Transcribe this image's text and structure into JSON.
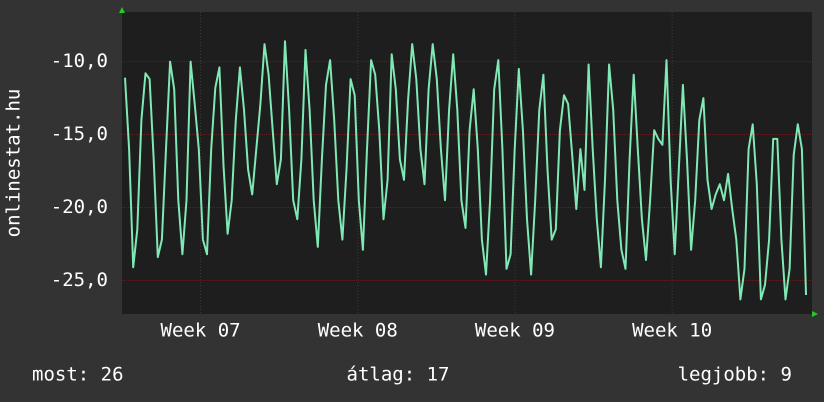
{
  "chart_data": {
    "type": "line",
    "ylabel": "onlinestat.hu",
    "ylim": [
      -27.3,
      -6.6
    ],
    "yticks": [
      {
        "value": -10,
        "label": "-10,0"
      },
      {
        "value": -15,
        "label": "-15,0"
      },
      {
        "value": -20,
        "label": "-20,0"
      },
      {
        "value": -25,
        "label": "-25,0"
      }
    ],
    "xlim": [
      6.5,
      10.89
    ],
    "xticks": [
      {
        "value": 7,
        "label": "Week 07"
      },
      {
        "value": 8,
        "label": "Week 08"
      },
      {
        "value": 9,
        "label": "Week 09"
      },
      {
        "value": 10,
        "label": "Week 10"
      }
    ],
    "grid": true,
    "series": [
      {
        "color": "#7fe8b4",
        "values": [
          -11.1,
          -16.0,
          -24.1,
          -21.5,
          -14.0,
          -10.8,
          -11.2,
          -16.7,
          -23.4,
          -22.2,
          -16.0,
          -10.0,
          -11.9,
          -19.5,
          -23.2,
          -19.5,
          -10.0,
          -12.9,
          -16.0,
          -22.2,
          -23.2,
          -16.0,
          -11.8,
          -10.4,
          -17.1,
          -21.8,
          -19.5,
          -14.0,
          -10.4,
          -13.3,
          -17.4,
          -19.1,
          -16.0,
          -12.9,
          -8.8,
          -10.9,
          -14.7,
          -18.4,
          -16.7,
          -8.6,
          -13.3,
          -19.5,
          -20.8,
          -16.7,
          -9.2,
          -13.3,
          -19.5,
          -22.7,
          -16.7,
          -11.6,
          -9.9,
          -14.0,
          -19.5,
          -22.2,
          -17.4,
          -11.2,
          -12.3,
          -19.5,
          -22.9,
          -16.0,
          -9.9,
          -10.9,
          -14.7,
          -20.8,
          -18.1,
          -9.5,
          -11.9,
          -16.7,
          -18.1,
          -12.6,
          -8.8,
          -11.2,
          -16.0,
          -18.4,
          -11.9,
          -8.8,
          -11.2,
          -16.0,
          -19.5,
          -13.3,
          -9.5,
          -13.3,
          -19.5,
          -21.4,
          -14.7,
          -11.9,
          -16.0,
          -22.2,
          -24.6,
          -19.5,
          -11.9,
          -9.9,
          -16.0,
          -24.2,
          -23.2,
          -16.0,
          -10.5,
          -14.7,
          -20.8,
          -24.6,
          -19.5,
          -13.3,
          -10.9,
          -17.4,
          -22.2,
          -21.5,
          -14.7,
          -12.3,
          -12.9,
          -16.4,
          -20.1,
          -16.0,
          -18.8,
          -10.2,
          -16.0,
          -20.8,
          -24.1,
          -18.1,
          -10.2,
          -13.3,
          -19.5,
          -22.9,
          -24.2,
          -16.7,
          -10.9,
          -16.0,
          -20.8,
          -23.6,
          -19.5,
          -14.7,
          -15.3,
          -15.7,
          -9.9,
          -18.1,
          -23.2,
          -17.4,
          -11.6,
          -16.7,
          -22.9,
          -19.5,
          -14.0,
          -12.5,
          -18.1,
          -20.1,
          -19.1,
          -18.4,
          -19.5,
          -17.7,
          -20.1,
          -22.2,
          -26.3,
          -24.2,
          -16.0,
          -14.3,
          -18.4,
          -26.3,
          -25.3,
          -22.2,
          -15.3,
          -15.3,
          -22.2,
          -26.3,
          -24.2,
          -16.4,
          -14.3,
          -16.0,
          -26.0
        ]
      }
    ],
    "stats": [
      "most: 26",
      "átlag: 17",
      "legjobb: 9"
    ]
  }
}
